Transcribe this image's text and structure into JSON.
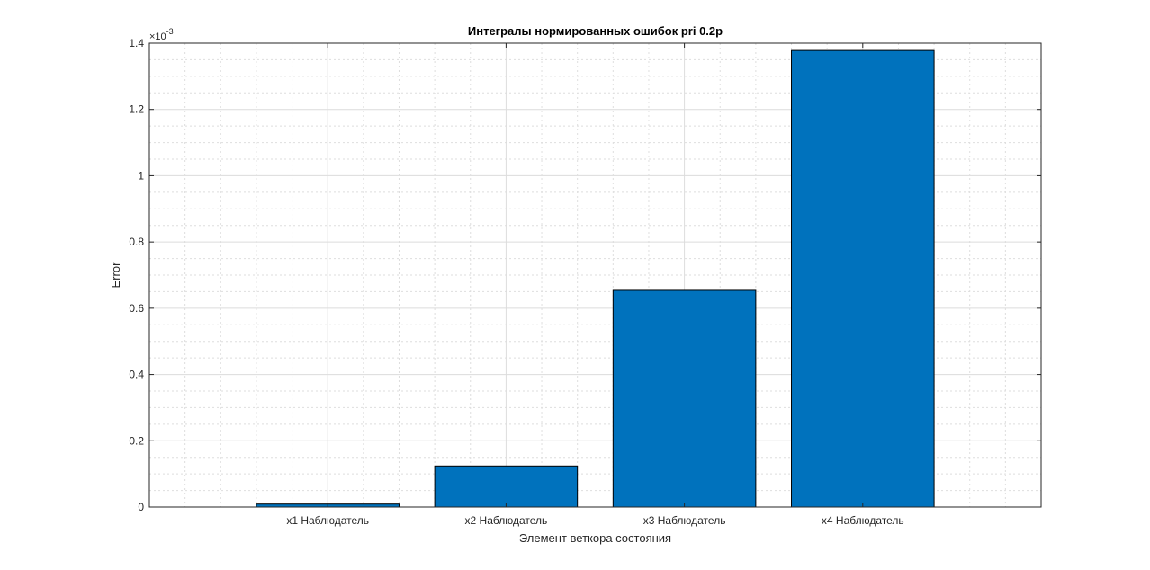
{
  "chart_data": {
    "type": "bar",
    "title": "Интегралы нормированных ошибок pri 0.2p",
    "xlabel": "Элемент веткора состояния",
    "ylabel": "Error",
    "categories": [
      "x1 Наблюдатель",
      "x2 Наблюдатель",
      "x3 Наблюдатель",
      "x4 Наблюдатель"
    ],
    "values": [
      9e-06,
      0.000124,
      0.000654,
      0.001378
    ],
    "ylim": [
      0,
      0.0014
    ],
    "xlim": [
      0,
      5
    ],
    "y_exponent_label": "×10",
    "y_exponent_power": "-3",
    "yticks": [
      "0",
      "0.2",
      "0.4",
      "0.6",
      "0.8",
      "1",
      "1.2",
      "1.4"
    ],
    "grid": true,
    "minor_grid": true,
    "bar_color": "#0072BD"
  }
}
